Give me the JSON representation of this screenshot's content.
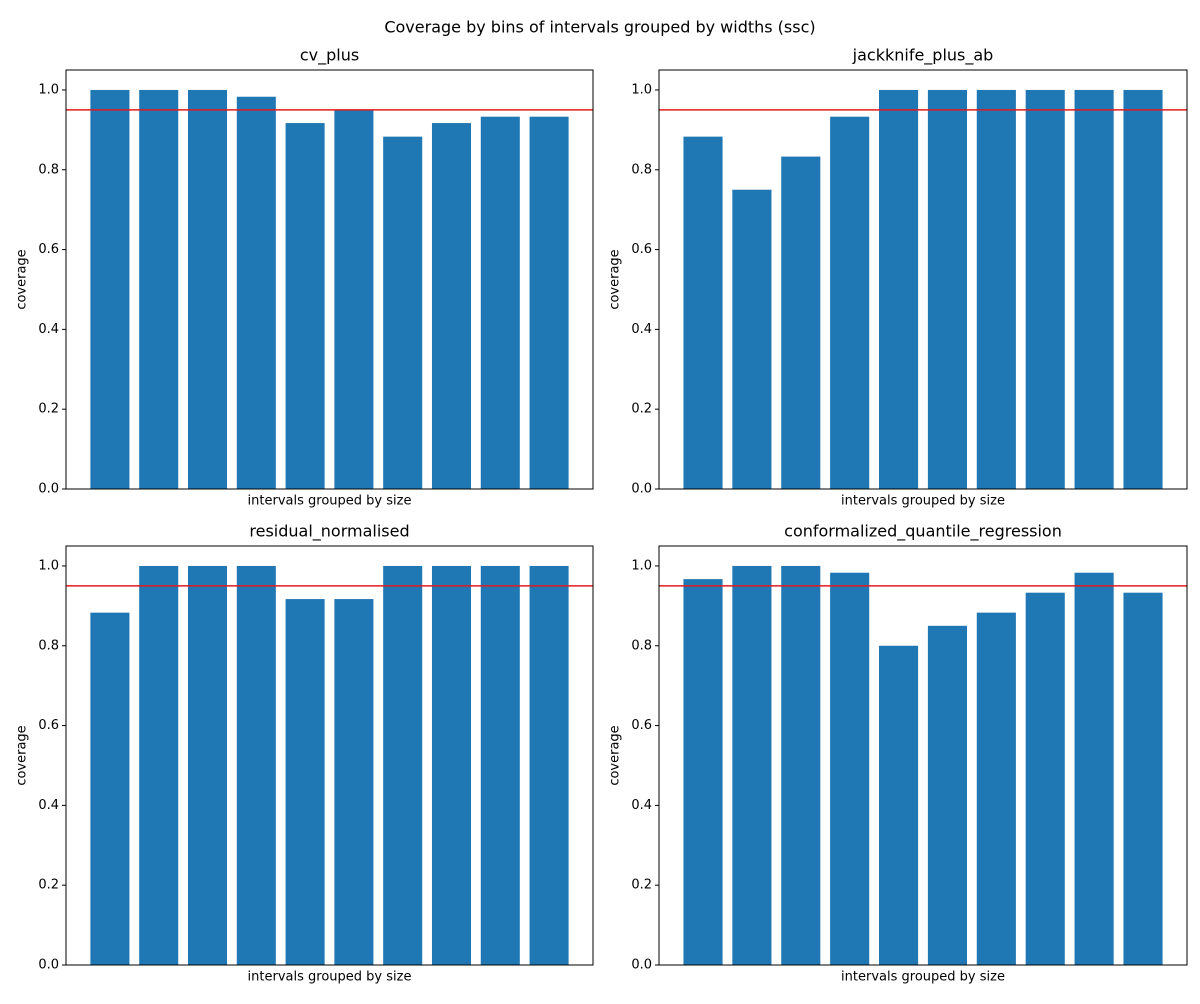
{
  "title": "Coverage by bins of intervals grouped by widths (ssc)",
  "chart_data": [
    {
      "type": "bar",
      "title": "cv_plus",
      "xlabel": "intervals grouped by size",
      "ylabel": "coverage",
      "categories": [
        null,
        null,
        null,
        null,
        null,
        null,
        null,
        null,
        null,
        null
      ],
      "values": [
        1.0,
        1.0,
        1.0,
        0.983,
        0.917,
        0.95,
        0.883,
        0.917,
        0.933,
        0.933
      ],
      "color": "#1f77b4",
      "ylim": [
        0,
        1.05
      ],
      "yticks": [
        {
          "value": 0,
          "label": "0.0"
        },
        0.2,
        0.4,
        0.6,
        0.8,
        {
          "value": 1,
          "label": "1.0"
        }
      ],
      "reference_line": {
        "value": 0.95,
        "color": "#e41a1c"
      }
    },
    {
      "type": "bar",
      "title": "jackknife_plus_ab",
      "xlabel": "intervals grouped by size",
      "ylabel": "coverage",
      "categories": [
        null,
        null,
        null,
        null,
        null,
        null,
        null,
        null,
        null,
        null
      ],
      "values": [
        0.883,
        0.75,
        0.833,
        0.933,
        1.0,
        1.0,
        1.0,
        1.0,
        1.0,
        1.0
      ],
      "color": "#1f77b4",
      "ylim": [
        0,
        1.05
      ],
      "yticks": [
        {
          "value": 0,
          "label": "0.0"
        },
        0.2,
        0.4,
        0.6,
        0.8,
        {
          "value": 1,
          "label": "1.0"
        }
      ],
      "reference_line": {
        "value": 0.95,
        "color": "#e41a1c"
      }
    },
    {
      "type": "bar",
      "title": "residual_normalised",
      "xlabel": "intervals grouped by size",
      "ylabel": "coverage",
      "categories": [
        null,
        null,
        null,
        null,
        null,
        null,
        null,
        null,
        null,
        null
      ],
      "values": [
        0.883,
        1.0,
        1.0,
        1.0,
        0.917,
        0.917,
        1.0,
        1.0,
        1.0,
        1.0
      ],
      "color": "#1f77b4",
      "ylim": [
        0,
        1.05
      ],
      "yticks": [
        {
          "value": 0,
          "label": "0.0"
        },
        0.2,
        0.4,
        0.6,
        0.8,
        {
          "value": 1,
          "label": "1.0"
        }
      ],
      "reference_line": {
        "value": 0.95,
        "color": "#e41a1c"
      }
    },
    {
      "type": "bar",
      "title": "conformalized_quantile_regression",
      "xlabel": "intervals grouped by size",
      "ylabel": "coverage",
      "categories": [
        null,
        null,
        null,
        null,
        null,
        null,
        null,
        null,
        null,
        null
      ],
      "values": [
        0.967,
        1.0,
        1.0,
        0.983,
        0.8,
        0.85,
        0.883,
        0.933,
        0.983,
        0.933
      ],
      "color": "#1f77b4",
      "ylim": [
        0,
        1.05
      ],
      "yticks": [
        {
          "value": 0,
          "label": "0.0"
        },
        0.2,
        0.4,
        0.6,
        0.8,
        {
          "value": 1,
          "label": "1.0"
        }
      ],
      "reference_line": {
        "value": 0.95,
        "color": "#e41a1c"
      }
    }
  ]
}
